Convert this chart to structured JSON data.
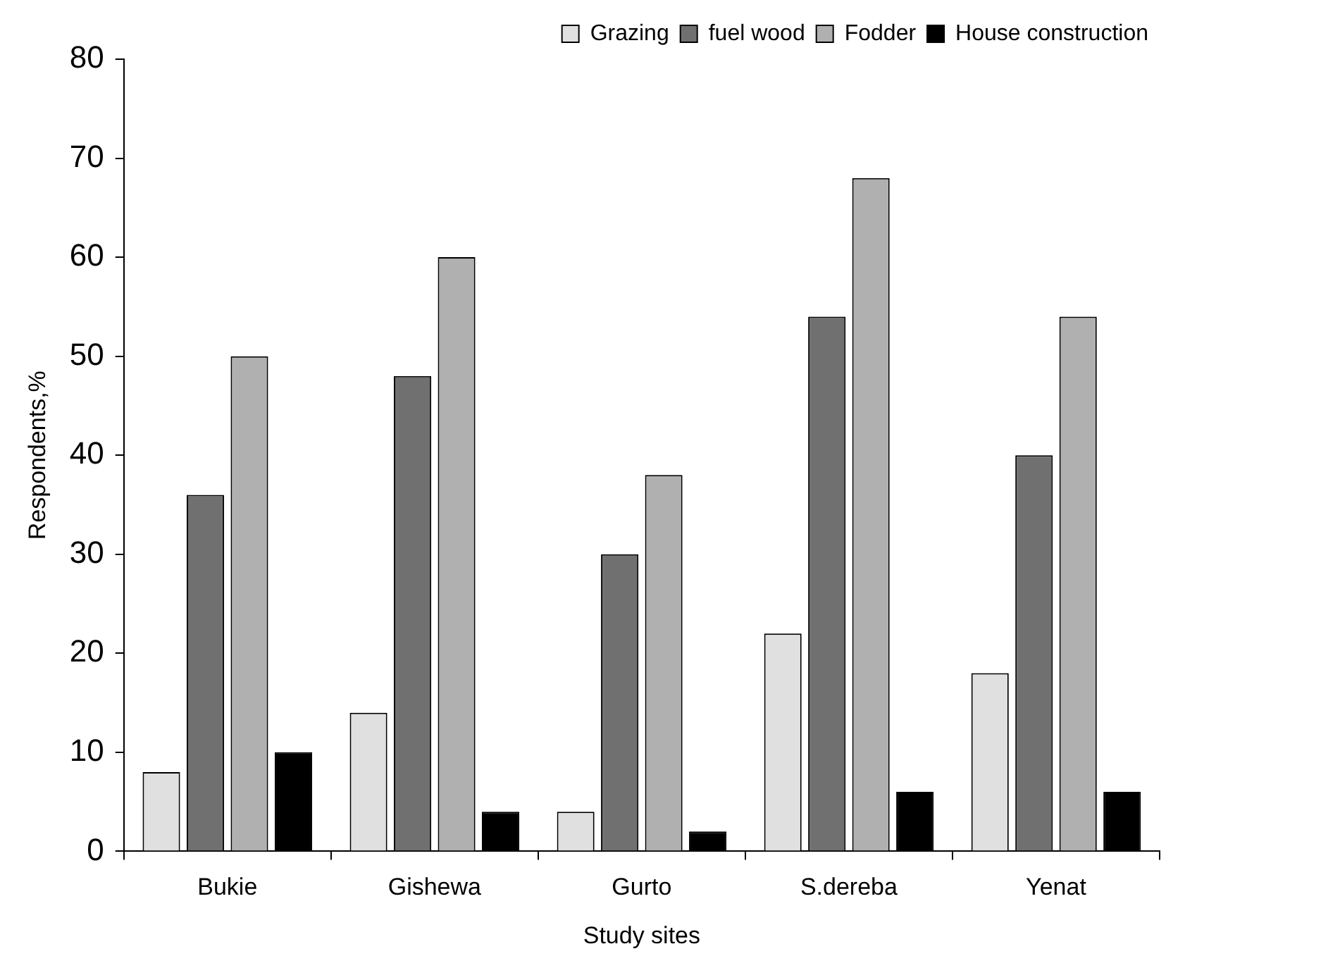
{
  "chart_data": {
    "type": "bar",
    "xlabel": "Study sites",
    "ylabel": "Respondents,%",
    "categories": [
      "Bukie",
      "Gishewa",
      "Gurto",
      "S.dereba",
      "Yenat"
    ],
    "series": [
      {
        "name": "Grazing",
        "color": "#e0e0e0",
        "values": [
          8,
          14,
          4,
          22,
          18
        ]
      },
      {
        "name": "fuel wood",
        "color": "#707070",
        "values": [
          36,
          48,
          30,
          54,
          40
        ]
      },
      {
        "name": "Fodder",
        "color": "#b0b0b0",
        "values": [
          50,
          60,
          38,
          68,
          54
        ]
      },
      {
        "name": "House construction",
        "color": "#000000",
        "values": [
          10,
          4,
          2,
          6,
          6
        ]
      }
    ],
    "ylim": [
      0,
      80
    ],
    "yticks": [
      0,
      10,
      20,
      30,
      40,
      50,
      60,
      70,
      80
    ],
    "grid": false,
    "legend": "top right"
  }
}
